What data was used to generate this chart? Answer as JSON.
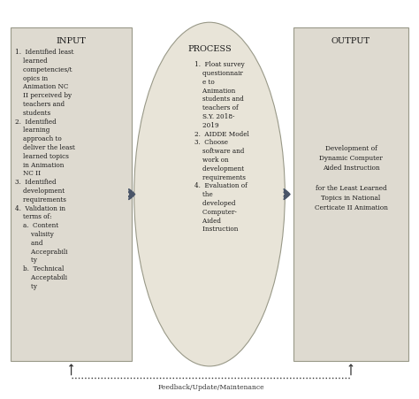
{
  "bg_color": "#ffffff",
  "box_color": "#dedad0",
  "ellipse_color": "#e8e4d8",
  "arrow_color": "#4a5568",
  "border_color": "#999988",
  "text_color": "#1a1a1a",
  "feedback_color": "#333333",
  "input_title": "INPUT",
  "input_text": "1.  Identified least\n    learned\n    competencies/t\n    opics in\n    Animation NC\n    II perceived by\n    teachers and\n    students\n2.  Identified\n    learning\n    approach to\n    deliver the least\n    learned topics\n    in Animation\n    NC II\n3.  Identified\n    development\n    requirements\n4.  Validation in\n    terms of:\n    a.  Content\n        valisity\n        and\n        Acceprabili\n        ty\n    b.  Technical\n        Acceptabili\n        ty",
  "process_title": "PROCESS",
  "process_text": "1.  Float survey\n    questionnair\n    e to\n    Animation\n    students and\n    teachers of\n    S.Y. 2018-\n    2019\n2.  AIDDE Model\n3.  Choose\n    software and\n    work on\n    development\n    requirements\n4.  Evaluation of\n    the\n    developed\n    Computer-\n    Aided\n    Instruction",
  "output_title": "OUTPUT",
  "output_text": "Development of\nDynamic Computer\nAided Instruction\n\nfor the Least Learned\nTopics in National\nCerticate II Animation",
  "feedback_text": "Feedback/Update/Maintenance",
  "figsize": [
    4.74,
    4.52
  ],
  "dpi": 100
}
